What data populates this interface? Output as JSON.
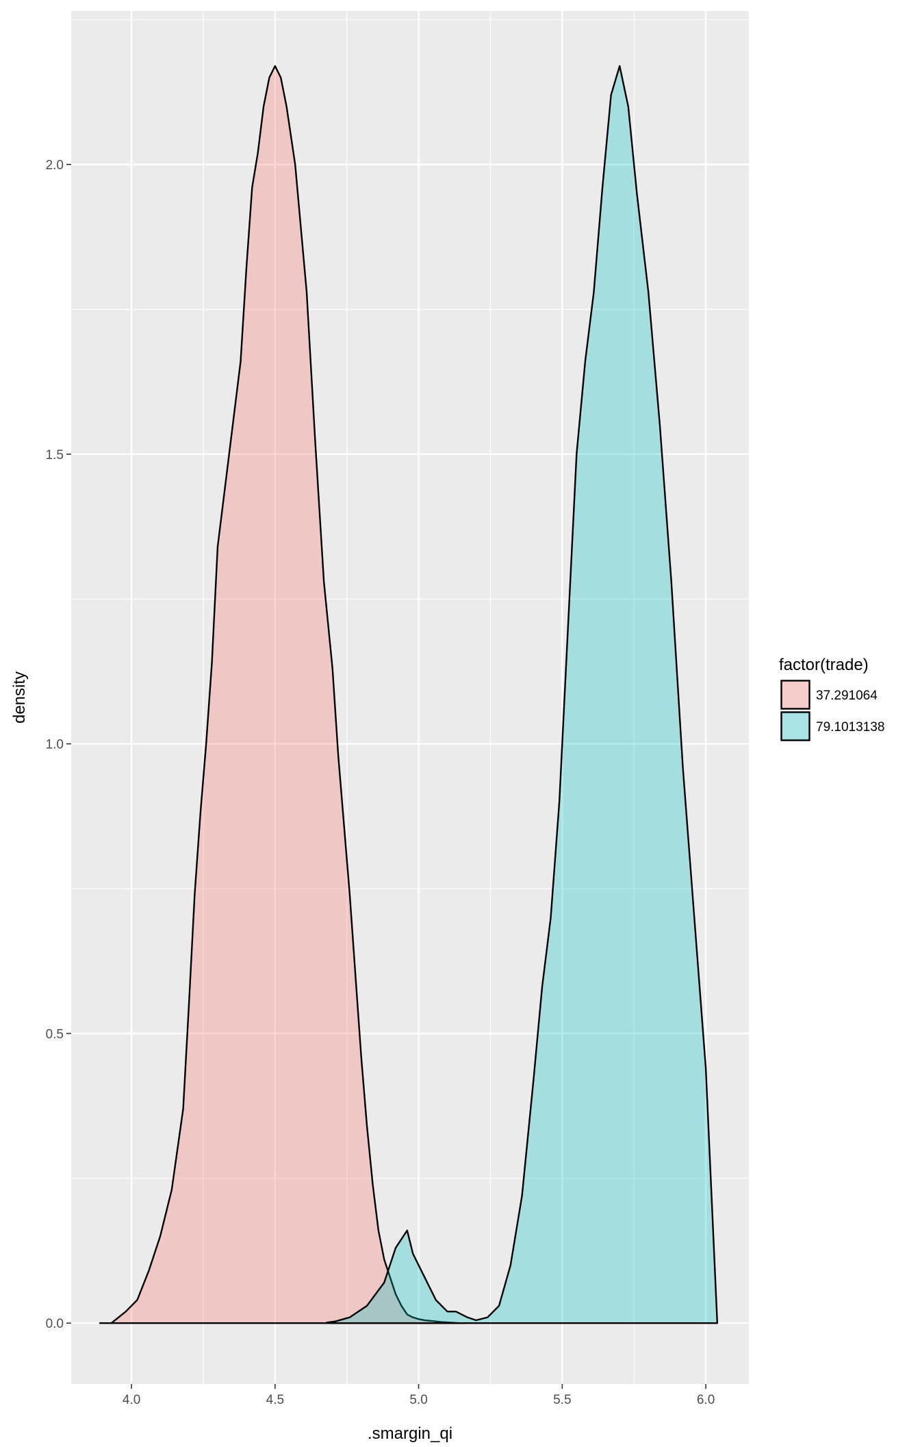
{
  "chart_data": {
    "type": "area",
    "xlabel": ".smargin_qi",
    "ylabel": "density",
    "xlim": [
      3.79,
      6.15
    ],
    "ylim": [
      -0.105,
      2.265
    ],
    "x_ticks": [
      4.0,
      4.5,
      5.0,
      5.5,
      6.0
    ],
    "x_tick_labels": [
      "4.0",
      "4.5",
      "5.0",
      "5.5",
      "6.0"
    ],
    "y_ticks": [
      0.0,
      0.5,
      1.0,
      1.5,
      2.0
    ],
    "y_tick_labels": [
      "0.0",
      "0.5",
      "1.0",
      "1.5",
      "2.0"
    ],
    "grid": true,
    "legend": {
      "title": "factor(trade)",
      "position": "right"
    },
    "series": [
      {
        "name": "37.291064",
        "fill": "#F8766D",
        "x": [
          3.89,
          3.93,
          3.98,
          4.02,
          4.06,
          4.1,
          4.14,
          4.18,
          4.2,
          4.22,
          4.24,
          4.26,
          4.28,
          4.3,
          4.34,
          4.38,
          4.4,
          4.42,
          4.44,
          4.46,
          4.48,
          4.5,
          4.52,
          4.54,
          4.57,
          4.61,
          4.64,
          4.67,
          4.7,
          4.72,
          4.74,
          4.76,
          4.78,
          4.8,
          4.82,
          4.84,
          4.86,
          4.88,
          4.9,
          4.92,
          4.94,
          4.96,
          4.98,
          5.0,
          5.02,
          5.04,
          5.06,
          5.08,
          5.11,
          5.14,
          5.16
        ],
        "y": [
          0.0,
          0.0,
          0.02,
          0.04,
          0.09,
          0.15,
          0.23,
          0.37,
          0.55,
          0.74,
          0.88,
          1.0,
          1.14,
          1.34,
          1.5,
          1.66,
          1.82,
          1.96,
          2.02,
          2.1,
          2.15,
          2.17,
          2.15,
          2.1,
          2.0,
          1.78,
          1.52,
          1.28,
          1.13,
          0.98,
          0.86,
          0.74,
          0.6,
          0.46,
          0.34,
          0.24,
          0.16,
          0.11,
          0.08,
          0.05,
          0.03,
          0.015,
          0.01,
          0.007,
          0.005,
          0.004,
          0.003,
          0.002,
          0.001,
          0.0,
          0.0
        ]
      },
      {
        "name": "79.1013138",
        "fill": "#00BFC4",
        "x": [
          4.68,
          4.71,
          4.76,
          4.82,
          4.88,
          4.92,
          4.96,
          4.98,
          5.0,
          5.02,
          5.04,
          5.06,
          5.08,
          5.1,
          5.13,
          5.17,
          5.2,
          5.24,
          5.28,
          5.32,
          5.36,
          5.4,
          5.43,
          5.46,
          5.49,
          5.52,
          5.55,
          5.58,
          5.61,
          5.64,
          5.67,
          5.7,
          5.73,
          5.76,
          5.8,
          5.84,
          5.88,
          5.92,
          5.96,
          6.0,
          6.04
        ],
        "y": [
          0.001,
          0.003,
          0.01,
          0.03,
          0.07,
          0.13,
          0.16,
          0.12,
          0.1,
          0.08,
          0.06,
          0.04,
          0.03,
          0.02,
          0.02,
          0.01,
          0.005,
          0.01,
          0.03,
          0.1,
          0.22,
          0.42,
          0.58,
          0.7,
          0.9,
          1.2,
          1.5,
          1.66,
          1.78,
          1.96,
          2.12,
          2.17,
          2.1,
          1.95,
          1.78,
          1.55,
          1.28,
          0.96,
          0.7,
          0.44,
          0.0
        ]
      }
    ]
  }
}
